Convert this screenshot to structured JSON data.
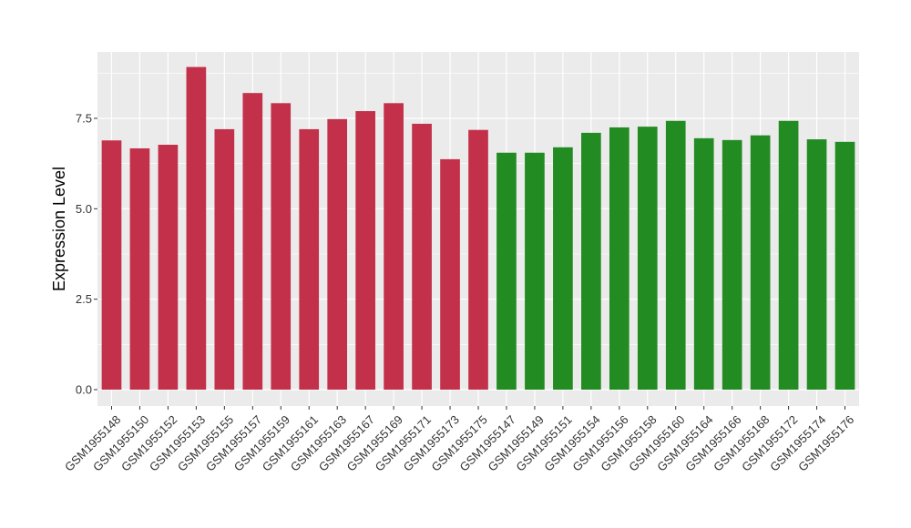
{
  "chart_data": {
    "type": "bar",
    "title": "",
    "xlabel": "",
    "ylabel": "Expression Level",
    "ylim": [
      0,
      9.1
    ],
    "yticks": [
      0.0,
      2.5,
      5.0,
      7.5
    ],
    "ytick_labels": [
      "0.0",
      "2.5",
      "5.0",
      "7.5"
    ],
    "grid": true,
    "legend": "none",
    "categories": [
      "GSM1955148",
      "GSM1955150",
      "GSM1955152",
      "GSM1955153",
      "GSM1955155",
      "GSM1955157",
      "GSM1955159",
      "GSM1955161",
      "GSM1955163",
      "GSM1955167",
      "GSM1955169",
      "GSM1955171",
      "GSM1955173",
      "GSM1955175",
      "GSM1955147",
      "GSM1955149",
      "GSM1955151",
      "GSM1955154",
      "GSM1955156",
      "GSM1955158",
      "GSM1955160",
      "GSM1955164",
      "GSM1955166",
      "GSM1955168",
      "GSM1955172",
      "GSM1955174",
      "GSM1955176"
    ],
    "values": [
      6.89,
      6.67,
      6.77,
      8.92,
      7.2,
      8.2,
      7.92,
      7.2,
      7.48,
      7.7,
      7.92,
      7.35,
      6.37,
      7.18,
      6.55,
      6.55,
      6.7,
      7.1,
      7.25,
      7.27,
      7.43,
      6.95,
      6.9,
      7.03,
      7.43,
      6.92,
      6.85
    ],
    "colors": [
      "#c3304a",
      "#c3304a",
      "#c3304a",
      "#c3304a",
      "#c3304a",
      "#c3304a",
      "#c3304a",
      "#c3304a",
      "#c3304a",
      "#c3304a",
      "#c3304a",
      "#c3304a",
      "#c3304a",
      "#c3304a",
      "#228b22",
      "#228b22",
      "#228b22",
      "#228b22",
      "#228b22",
      "#228b22",
      "#228b22",
      "#228b22",
      "#228b22",
      "#228b22",
      "#228b22",
      "#228b22",
      "#228b22"
    ],
    "panel_background": "#ebebeb",
    "grid_color": "#ffffff"
  }
}
